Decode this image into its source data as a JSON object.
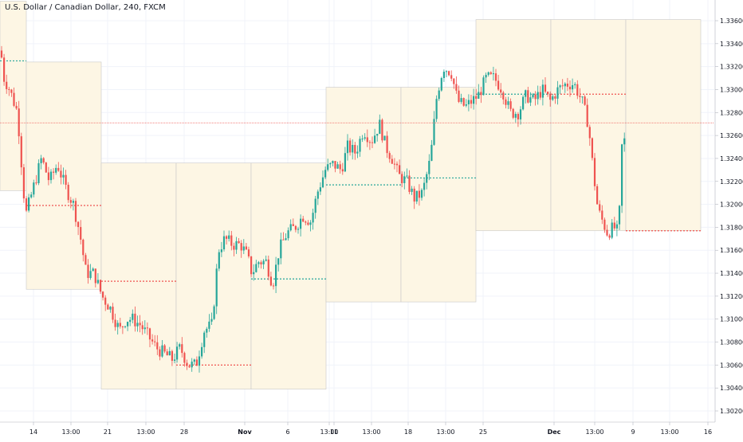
{
  "chart_data": {
    "type": "candlestick",
    "title": "U.S. Dollar / Canadian Dollar, 240, FXCM",
    "price_axis": {
      "ticks": [
        "1.33600",
        "1.33400",
        "1.33200",
        "1.33000",
        "1.32800",
        "1.32600",
        "1.32400",
        "1.32200",
        "1.32000",
        "1.31800",
        "1.31600",
        "1.31400",
        "1.31200",
        "1.31000",
        "1.30800",
        "1.30600",
        "1.30400",
        "1.30200"
      ],
      "range": [
        1.3013,
        1.3377
      ]
    },
    "time_axis": {
      "ticks": [
        "14",
        "13:00",
        "21",
        "13:00",
        "28",
        "Nov",
        "6",
        "13:00",
        "11",
        "13:00",
        "18",
        "13:00",
        "25",
        "Dec",
        "13:00",
        "9",
        "13:00",
        "16"
      ],
      "bold": [
        "Nov",
        "Dec"
      ]
    },
    "current_price": 1.3271,
    "colors": {
      "up": "#26a69a",
      "down": "#ef5350",
      "box_fill": "#fdf6e4",
      "box_border": "#c8c8c8",
      "dotted_up": "#26a69a",
      "dotted_down": "#ef5350",
      "price_line": "#ef5350"
    },
    "weekly_boxes": [
      {
        "high": 1.3377,
        "low": 1.3212,
        "mid": 1.3325
      },
      {
        "high": 1.3324,
        "low": 1.3126,
        "mid": 1.3199
      },
      {
        "high": 1.3236,
        "low": 1.3039,
        "mid": 1.3133
      },
      {
        "high": 1.3236,
        "low": 1.3039,
        "mid": 1.306
      },
      {
        "high": 1.3236,
        "low": 1.3039,
        "mid": 1.3135
      },
      {
        "high": 1.3302,
        "low": 1.3115,
        "mid": 1.3217
      },
      {
        "high": 1.3302,
        "low": 1.3115,
        "mid": 1.3223
      },
      {
        "high": 1.3361,
        "low": 1.3177,
        "mid": 1.3296
      },
      {
        "high": 1.3361,
        "low": 1.3177,
        "mid": 1.3296
      },
      {
        "high": 1.3361,
        "low": 1.3177,
        "mid": 1.3177
      }
    ],
    "path_points": [
      [
        0,
        1.334
      ],
      [
        5,
        1.331
      ],
      [
        12,
        1.33
      ],
      [
        22,
        1.328
      ],
      [
        32,
        1.319
      ],
      [
        40,
        1.321
      ],
      [
        52,
        1.324
      ],
      [
        62,
        1.322
      ],
      [
        72,
        1.3235
      ],
      [
        82,
        1.3215
      ],
      [
        92,
        1.32
      ],
      [
        100,
        1.3175
      ],
      [
        108,
        1.314
      ],
      [
        118,
        1.314
      ],
      [
        128,
        1.312
      ],
      [
        138,
        1.311
      ],
      [
        150,
        1.309
      ],
      [
        158,
        1.31
      ],
      [
        166,
        1.31
      ],
      [
        176,
        1.3095
      ],
      [
        186,
        1.3085
      ],
      [
        196,
        1.3075
      ],
      [
        206,
        1.307
      ],
      [
        216,
        1.3065
      ],
      [
        226,
        1.3075
      ],
      [
        236,
        1.306
      ],
      [
        246,
        1.306
      ],
      [
        256,
        1.309
      ],
      [
        266,
        1.3095
      ],
      [
        274,
        1.316
      ],
      [
        282,
        1.317
      ],
      [
        292,
        1.3165
      ],
      [
        302,
        1.3165
      ],
      [
        310,
        1.3155
      ],
      [
        316,
        1.314
      ],
      [
        324,
        1.315
      ],
      [
        334,
        1.315
      ],
      [
        342,
        1.313
      ],
      [
        350,
        1.316
      ],
      [
        360,
        1.3175
      ],
      [
        370,
        1.318
      ],
      [
        380,
        1.319
      ],
      [
        390,
        1.3185
      ],
      [
        398,
        1.321
      ],
      [
        408,
        1.323
      ],
      [
        418,
        1.3235
      ],
      [
        428,
        1.323
      ],
      [
        436,
        1.325
      ],
      [
        446,
        1.3245
      ],
      [
        456,
        1.3265
      ],
      [
        466,
        1.3255
      ],
      [
        476,
        1.327
      ],
      [
        484,
        1.325
      ],
      [
        492,
        1.324
      ],
      [
        500,
        1.3225
      ],
      [
        510,
        1.322
      ],
      [
        520,
        1.3205
      ],
      [
        530,
        1.321
      ],
      [
        540,
        1.324
      ],
      [
        548,
        1.3295
      ],
      [
        556,
        1.332
      ],
      [
        566,
        1.3315
      ],
      [
        574,
        1.329
      ],
      [
        584,
        1.3285
      ],
      [
        592,
        1.329
      ],
      [
        600,
        1.3295
      ],
      [
        610,
        1.331
      ],
      [
        620,
        1.331
      ],
      [
        630,
        1.33
      ],
      [
        640,
        1.328
      ],
      [
        650,
        1.328
      ],
      [
        660,
        1.3295
      ],
      [
        670,
        1.329
      ],
      [
        680,
        1.33
      ],
      [
        690,
        1.329
      ],
      [
        700,
        1.33
      ],
      [
        710,
        1.3305
      ],
      [
        720,
        1.3305
      ],
      [
        730,
        1.329
      ],
      [
        738,
        1.327
      ],
      [
        744,
        1.323
      ],
      [
        750,
        1.3195
      ],
      [
        756,
        1.3185
      ],
      [
        762,
        1.3175
      ],
      [
        770,
        1.318
      ],
      [
        776,
        1.3175
      ],
      [
        780,
        1.325
      ],
      [
        786,
        1.326
      ]
    ]
  }
}
